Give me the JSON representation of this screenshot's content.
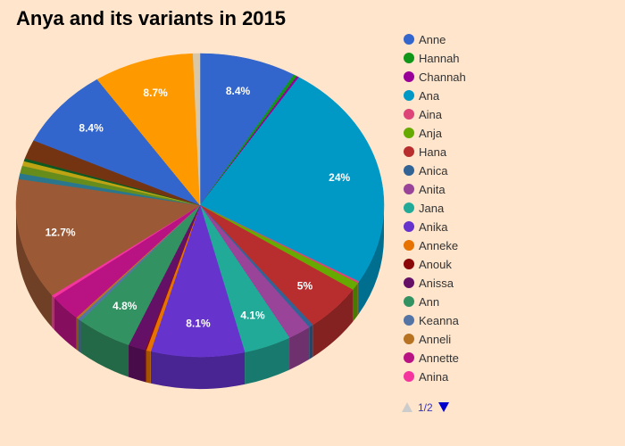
{
  "chart_data": {
    "type": "pie",
    "title": "Anya and its variants in 2015",
    "legend_position": "right",
    "legend_page": "1/2",
    "slices": [
      {
        "name": "Anne",
        "value": 8.4,
        "color": "#3366cc",
        "label": "8.4%"
      },
      {
        "name": "Hannah",
        "value": 0.3,
        "color": "#109618",
        "label": ""
      },
      {
        "name": "Channah",
        "value": 0.2,
        "color": "#990099",
        "label": ""
      },
      {
        "name": "Ana",
        "value": 24.0,
        "color": "#0099c6",
        "label": "24%"
      },
      {
        "name": "Aina",
        "value": 0.2,
        "color": "#dd4477",
        "label": ""
      },
      {
        "name": "Anja",
        "value": 0.8,
        "color": "#66aa00",
        "label": ""
      },
      {
        "name": "Hana",
        "value": 5.0,
        "color": "#b82e2e",
        "label": "5%"
      },
      {
        "name": "Anica",
        "value": 0.4,
        "color": "#316395",
        "label": ""
      },
      {
        "name": "Anita",
        "value": 2.0,
        "color": "#994499",
        "label": ""
      },
      {
        "name": "Jana",
        "value": 4.1,
        "color": "#22aa99",
        "label": "4.1%"
      },
      {
        "name": "Anika",
        "value": 8.1,
        "color": "#6633cc",
        "label": "8.1%"
      },
      {
        "name": "Anneke",
        "value": 0.4,
        "color": "#e67300",
        "label": ""
      },
      {
        "name": "Anouk",
        "value": 0.1,
        "color": "#8b0707",
        "label": ""
      },
      {
        "name": "Anissa",
        "value": 1.5,
        "color": "#651067",
        "label": ""
      },
      {
        "name": "Ann",
        "value": 4.8,
        "color": "#329262",
        "label": "4.8%"
      },
      {
        "name": "Keanna",
        "value": 0.3,
        "color": "#5574a6",
        "label": ""
      },
      {
        "name": "Anneli",
        "value": 0.2,
        "color": "#b77322",
        "label": ""
      },
      {
        "name": "Annette",
        "value": 2.8,
        "color": "#b91383",
        "label": ""
      },
      {
        "name": "Anina",
        "value": 0.3,
        "color": "#f4359e",
        "label": ""
      },
      {
        "name": "",
        "value": 12.7,
        "color": "#9c5935",
        "label": "12.7%"
      },
      {
        "name": "",
        "value": 0.6,
        "color": "#2a778d",
        "label": ""
      },
      {
        "name": "",
        "value": 0.8,
        "color": "#668d1c",
        "label": ""
      },
      {
        "name": "",
        "value": 0.5,
        "color": "#bea413",
        "label": ""
      },
      {
        "name": "",
        "value": 0.3,
        "color": "#0c5922",
        "label": ""
      },
      {
        "name": "",
        "value": 2.0,
        "color": "#743411",
        "label": ""
      },
      {
        "name": "",
        "value": 8.4,
        "color": "#3366cc",
        "label": "8.4%"
      },
      {
        "name": "",
        "value": 8.7,
        "color": "#ff9900",
        "label": "8.7%"
      },
      {
        "name": "",
        "value": 0.6,
        "color": "#d9c7a5",
        "label": ""
      }
    ]
  }
}
